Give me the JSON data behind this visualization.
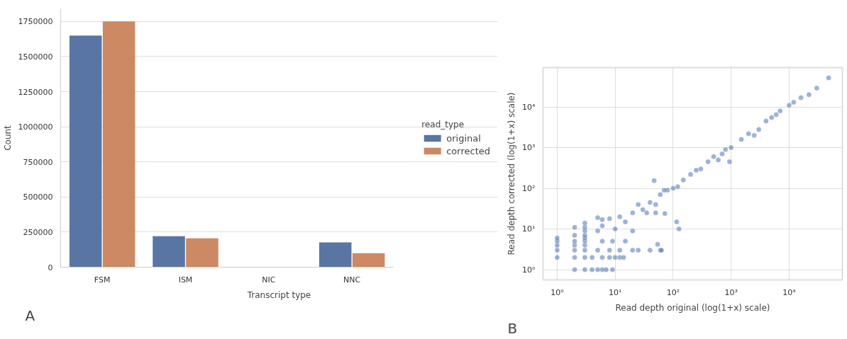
{
  "chart_data": [
    {
      "type": "bar",
      "categories": [
        "FSM",
        "ISM",
        "NIC",
        "NNC"
      ],
      "xlabel": "Transcript type",
      "ylabel": "Count",
      "ylim": [
        0,
        1840000
      ],
      "yticks": [
        0,
        250000,
        500000,
        750000,
        1000000,
        1250000,
        1500000,
        1750000
      ],
      "grid": "y",
      "legend": "right",
      "legend_title": "read_type",
      "annotations": [
        "A"
      ],
      "series": [
        {
          "name": "original",
          "color": "#5975a4",
          "values": [
            1650000,
            220000,
            0,
            176000
          ]
        },
        {
          "name": "corrected",
          "color": "#cc8963",
          "values": [
            1750000,
            205000,
            0,
            100000
          ]
        }
      ]
    },
    {
      "type": "scatter",
      "xlabel": "Read depth original (log(1+x) scale)",
      "ylabel": "Read depth corrected (log(1+x) scale)",
      "log": "xy",
      "grid": true,
      "marker": "circle",
      "color": "#4c72b0",
      "xlim": [
        0.57,
        83000
      ],
      "ylim": [
        0.56,
        93000
      ],
      "xticks": [
        {
          "value": 1,
          "label": "10⁰"
        },
        {
          "value": 10,
          "label": "10¹"
        },
        {
          "value": 100,
          "label": "10²"
        },
        {
          "value": 1000,
          "label": "10³"
        },
        {
          "value": 10000,
          "label": "10⁴"
        }
      ],
      "yticks": [
        {
          "value": 1,
          "label": "10⁰"
        },
        {
          "value": 10,
          "label": "10¹"
        },
        {
          "value": 100,
          "label": "10²"
        },
        {
          "value": 1000,
          "label": "10³"
        },
        {
          "value": 10000,
          "label": "10⁴"
        }
      ],
      "annotations": [
        "B"
      ],
      "x": [
        1,
        1,
        1,
        1,
        1,
        2,
        2,
        2,
        2,
        2,
        2,
        2,
        3,
        3,
        3,
        3,
        3,
        3,
        3,
        3,
        3,
        3,
        4,
        5,
        6,
        7,
        9,
        4,
        6,
        8,
        10,
        12,
        14,
        5,
        8,
        12,
        20,
        25,
        40,
        60,
        6,
        9,
        15,
        5,
        6,
        8,
        10,
        15,
        20,
        30,
        40,
        50,
        60,
        80,
        100,
        150,
        200,
        300,
        400,
        500,
        700,
        1000,
        1500,
        2000,
        3000,
        4000,
        5000,
        7000,
        10000,
        12000,
        16000,
        22000,
        30000,
        48000,
        115,
        126,
        54,
        63,
        72,
        5,
        6,
        47,
        20,
        50,
        940,
        12,
        25,
        35,
        70,
        120,
        250,
        600,
        800,
        2500,
        6000
      ],
      "values": [
        2,
        3,
        4,
        5,
        6,
        1,
        2,
        3,
        4,
        5,
        7,
        11,
        1,
        2,
        3,
        4,
        5,
        6,
        7,
        9,
        11,
        14,
        1,
        1,
        1,
        1,
        1,
        2,
        2,
        2,
        2,
        2,
        2,
        3,
        3,
        3,
        3,
        3,
        3,
        3,
        5,
        5,
        5,
        9,
        12,
        18,
        10,
        15,
        25,
        30,
        45,
        40,
        70,
        90,
        100,
        160,
        220,
        300,
        450,
        600,
        700,
        1000,
        1600,
        2200,
        2800,
        4500,
        5500,
        8000,
        11000,
        13000,
        17000,
        20000,
        29000,
        52000,
        15,
        10,
        4.2,
        3,
        24,
        19,
        17,
        155,
        9,
        25,
        450,
        20,
        40,
        25,
        90,
        110,
        280,
        500,
        900,
        2000,
        6500
      ]
    }
  ]
}
